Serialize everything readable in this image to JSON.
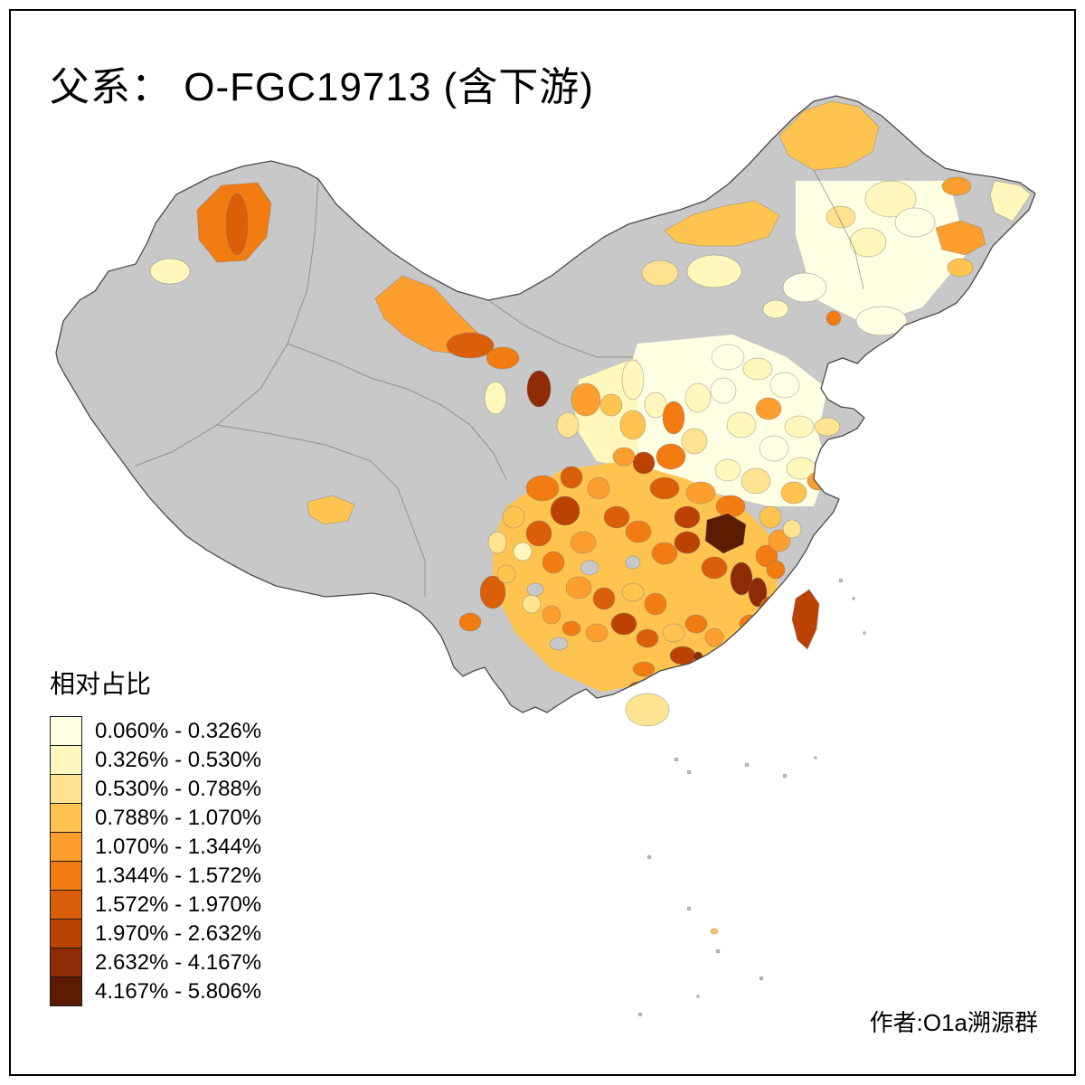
{
  "title": "父系： O-FGC19713 (含下游)",
  "legend": {
    "title": "相对占比",
    "classes": [
      {
        "range": "0.060% - 0.326%",
        "color": "#FFFFE3"
      },
      {
        "range": "0.326% - 0.530%",
        "color": "#FFF7BC"
      },
      {
        "range": "0.530% - 0.788%",
        "color": "#FEE391"
      },
      {
        "range": "0.788% - 1.070%",
        "color": "#FEC44F"
      },
      {
        "range": "1.070% - 1.344%",
        "color": "#FE9E2F"
      },
      {
        "range": "1.344% - 1.572%",
        "color": "#F37C12"
      },
      {
        "range": "1.572% - 1.970%",
        "color": "#DB5E08"
      },
      {
        "range": "1.970% - 2.632%",
        "color": "#BC4204"
      },
      {
        "range": "2.632% - 4.167%",
        "color": "#8E2B04"
      },
      {
        "range": "4.167% - 5.806%",
        "color": "#5C1C02"
      }
    ]
  },
  "author": "作者:O1a溯源群",
  "map": {
    "type": "choropleth",
    "region": "China prefectures",
    "no_data_color": "#C8C8C8",
    "background": "#FFFFFF",
    "frame_color": "#000000",
    "unit": "percent relative share of paternal haplogroup O-FGC19713 (incl. downstream)"
  }
}
